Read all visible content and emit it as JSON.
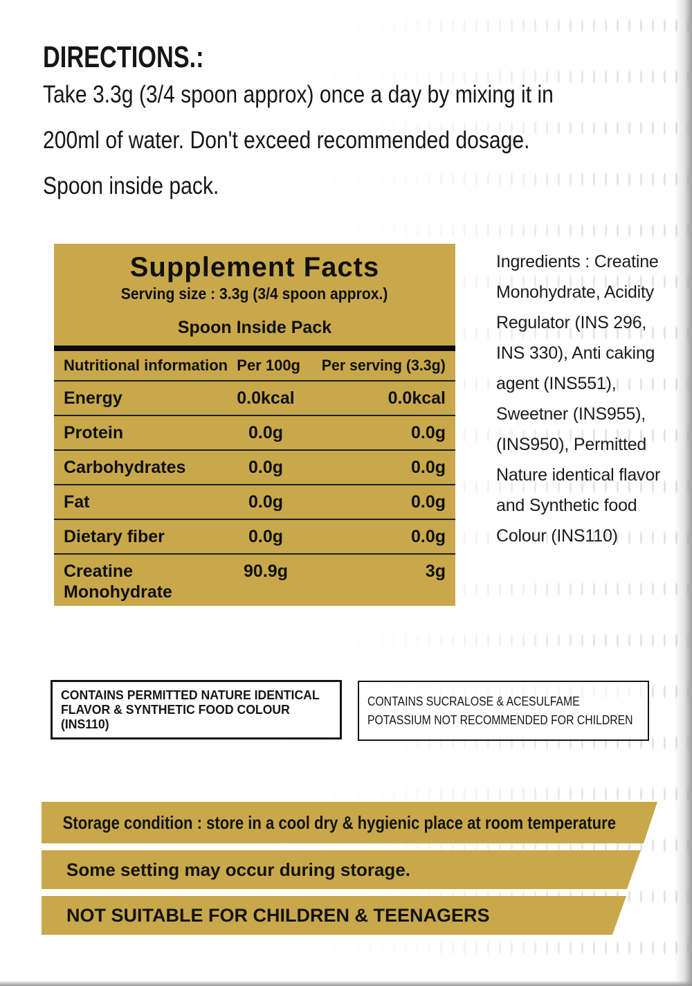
{
  "page": {
    "accent_gold": "#C9A84B",
    "text_color": "#1a1a1a",
    "pattern_color": "#e2e2e2"
  },
  "directions": {
    "title": "DIRECTIONS.:",
    "lines": [
      "Take 3.3g (3/4 spoon approx) once a day by mixing it in",
      "200ml of water. Don't exceed recommended dosage.",
      "Spoon inside pack."
    ]
  },
  "supplement": {
    "title": "Supplement Facts",
    "serving_size": "Serving size : 3.3g (3/4 spoon approx.)",
    "spoon_note": "Spoon Inside Pack",
    "columns": {
      "name": "Nutritional information",
      "per_100g": "Per 100g",
      "per_serving": "Per serving (3.3g)"
    },
    "rows": [
      {
        "name": "Energy",
        "per_100g": "0.0kcal",
        "per_serving": "0.0kcal"
      },
      {
        "name": "Protein",
        "per_100g": "0.0g",
        "per_serving": "0.0g"
      },
      {
        "name": "Carbohydrates",
        "per_100g": "0.0g",
        "per_serving": "0.0g"
      },
      {
        "name": "Fat",
        "per_100g": "0.0g",
        "per_serving": "0.0g"
      },
      {
        "name": "Dietary fiber",
        "per_100g": "0.0g",
        "per_serving": "0.0g"
      },
      {
        "name": "Creatine Monohydrate",
        "per_100g": "90.9g",
        "per_serving": "3g"
      }
    ]
  },
  "ingredients": {
    "text": "Ingredients : Creatine Monohydrate, Acidity Regulator (INS 296, INS 330), Anti caking agent (INS551), Sweetner (INS955), (INS950), Permitted Nature identical flavor and Synthetic food Colour (INS110)"
  },
  "notices": {
    "box1": "CONTAINS PERMITTED NATURE IDENTICAL FLAVOR & SYNTHETIC FOOD COLOUR (INS110)",
    "box2": "CONTAINS SUCRALOSE & ACESULFAME POTASSIUM NOT RECOMMENDED FOR CHILDREN"
  },
  "banners": [
    {
      "text": "Storage condition : store in a cool dry & hygienic place at room temperature"
    },
    {
      "text": "Some setting may occur during storage."
    },
    {
      "text": "NOT SUITABLE FOR CHILDREN & TEENAGERS"
    }
  ]
}
